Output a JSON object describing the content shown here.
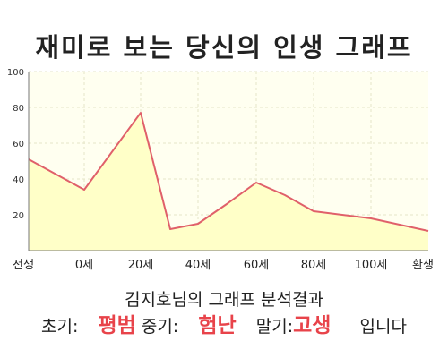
{
  "title": "재미로 보는 당신의 인생 그래프",
  "subtitle": "김지호님의 그래프 분석결과",
  "result": {
    "early_label": "초기:",
    "early_value": "평범",
    "mid_label": "중기:",
    "mid_value": "험난",
    "late_label": "말기:",
    "late_value": "고생",
    "suffix": "입니다"
  },
  "colors": {
    "line": "#e0606a",
    "fill": "#ffffc8",
    "plot_bg": "#fffff0",
    "accent_text": "#e8434a"
  },
  "chart_data": {
    "type": "area",
    "x_labels": [
      "전생",
      "0세",
      "20세",
      "40세",
      "60세",
      "80세",
      "100세",
      "환생"
    ],
    "y_ticks": [
      20,
      40,
      60,
      80,
      100
    ],
    "ylim": [
      0,
      100
    ],
    "points": [
      {
        "x": "전생",
        "y": 51
      },
      {
        "x": "0세",
        "y": 34
      },
      {
        "x": "20세",
        "y": 77
      },
      {
        "x": "30세",
        "y": 12
      },
      {
        "x": "40세",
        "y": 15
      },
      {
        "x": "50세",
        "y": 26
      },
      {
        "x": "60세",
        "y": 38
      },
      {
        "x": "70세",
        "y": 31
      },
      {
        "x": "80세",
        "y": 22
      },
      {
        "x": "90세",
        "y": 20
      },
      {
        "x": "100세",
        "y": 18
      },
      {
        "x": "환생",
        "y": 11
      }
    ],
    "grid": true
  }
}
